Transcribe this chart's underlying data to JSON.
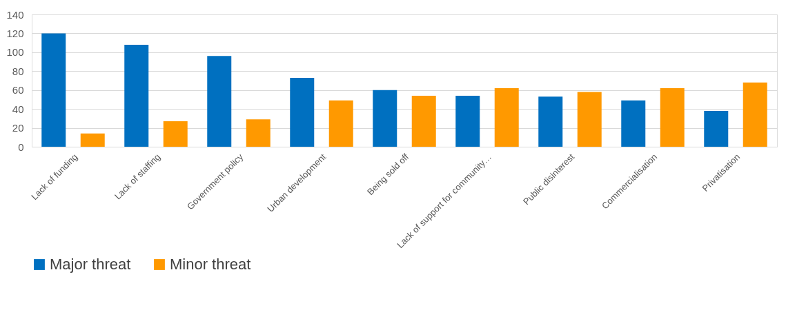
{
  "chart_data": {
    "type": "bar",
    "categories": [
      "Lack of funding",
      "Lack of staffing",
      "Government policy",
      "Urban development",
      "Being sold off",
      "Lack of support for community…",
      "Public disinterest",
      "Commercialisation",
      "Privatisation"
    ],
    "series": [
      {
        "name": "Major threat",
        "color": "#0070c0",
        "values": [
          120,
          108,
          96,
          73,
          60,
          54,
          53,
          49,
          38
        ]
      },
      {
        "name": "Minor threat",
        "color": "#ff9900",
        "values": [
          14,
          27,
          29,
          49,
          54,
          62,
          58,
          62,
          68
        ]
      }
    ],
    "ylim": [
      0,
      140
    ],
    "yticks": [
      0,
      20,
      40,
      60,
      80,
      100,
      120,
      140
    ],
    "grid": "y",
    "legend": "bottom"
  }
}
